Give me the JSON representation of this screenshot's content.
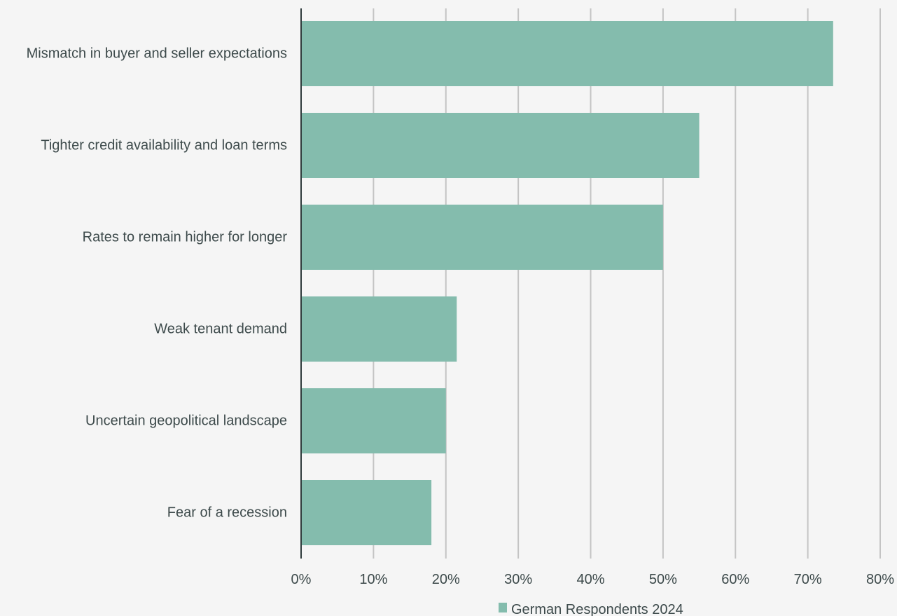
{
  "chart_data": {
    "type": "bar",
    "orientation": "horizontal",
    "categories": [
      "Mismatch in buyer and seller expectations",
      "Tighter credit availability and loan terms",
      "Rates to remain higher for longer",
      "Weak tenant demand",
      "Uncertain geopolitical landscape",
      "Fear of a recession"
    ],
    "series": [
      {
        "name": "German Respondents 2024",
        "color": "#84bcad",
        "values": [
          73.5,
          55,
          50,
          21.5,
          20,
          18
        ]
      }
    ],
    "xlim": [
      0,
      80
    ],
    "xticks": [
      0,
      10,
      20,
      30,
      40,
      50,
      60,
      70,
      80
    ],
    "tick_format": "percent",
    "grid": "vertical",
    "legend_position": "bottom",
    "title": "",
    "xlabel": "",
    "ylabel": ""
  },
  "colors": {
    "background": "#f5f5f5",
    "bar": "#84bcad",
    "gridline": "#c4c4c4",
    "axis": "#2f3b3c",
    "text": "#3d4a4b"
  }
}
